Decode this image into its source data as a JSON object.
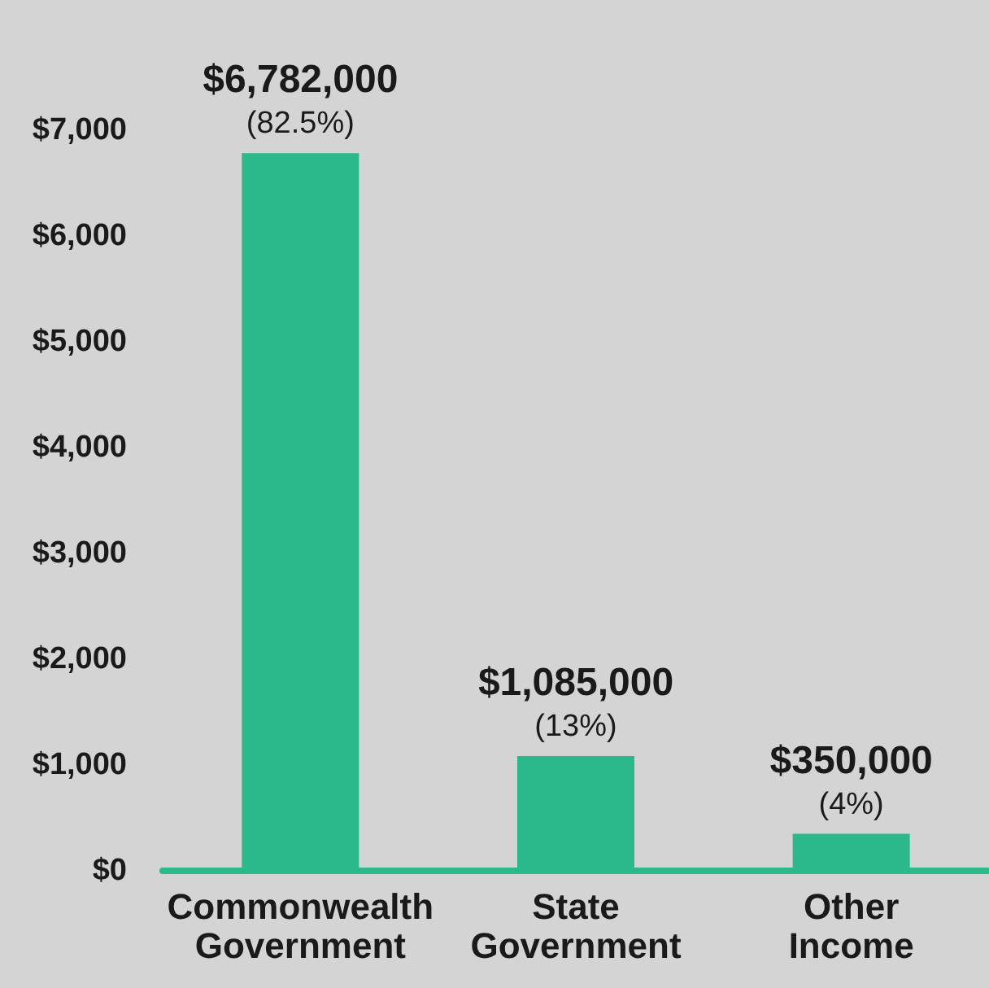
{
  "chart_data": {
    "type": "bar",
    "categories": [
      "Commonwealth Government",
      "State Government",
      "Other Income"
    ],
    "values": [
      6782,
      1085,
      350
    ],
    "annotations": [
      {
        "text": "$6,782,000\n(82.5%)",
        "x": "Commonwealth Government",
        "y": 6782
      },
      {
        "text": "$1,085,000\n(13%)",
        "x": "State Government",
        "y": 1085
      },
      {
        "text": "$350,000\n(4%)",
        "x": "Other Income",
        "y": 350
      }
    ],
    "color": "#2bb88a",
    "ylim": [
      0,
      7000
    ],
    "yticks": [
      {
        "value": 0,
        "label": "$0"
      },
      {
        "value": 1000,
        "label": "$1,000"
      },
      {
        "value": 2000,
        "label": "$2,000"
      },
      {
        "value": 3000,
        "label": "$3,000"
      },
      {
        "value": 4000,
        "label": "$4,000"
      },
      {
        "value": 5000,
        "label": "$5,000"
      },
      {
        "value": 6000,
        "label": "$6,000"
      },
      {
        "value": 7000,
        "label": "$7,000"
      }
    ],
    "grid": false
  }
}
